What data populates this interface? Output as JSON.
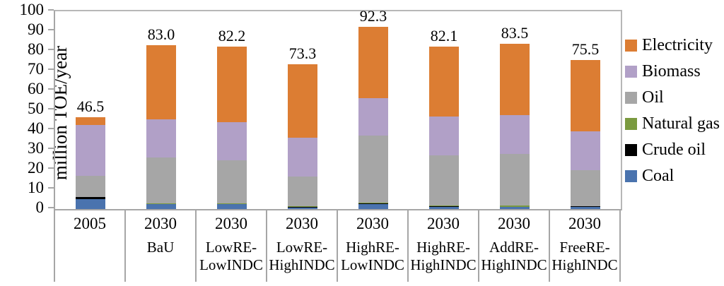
{
  "chart_data": {
    "type": "bar",
    "stacked": true,
    "ylabel": "million TOE/year",
    "ylim": [
      0,
      100
    ],
    "ytick_step": 10,
    "grid": false,
    "legend_position": "right",
    "categories": [
      {
        "year": "2005",
        "scenario": ""
      },
      {
        "year": "2030",
        "scenario": "BaU"
      },
      {
        "year": "2030",
        "scenario": "LowRE-\nLowINDC"
      },
      {
        "year": "2030",
        "scenario": "LowRE-\nHighINDC"
      },
      {
        "year": "2030",
        "scenario": "HighRE-\nLowINDC"
      },
      {
        "year": "2030",
        "scenario": "HighRE-\nHighINDC"
      },
      {
        "year": "2030",
        "scenario": "AddRE-\nHighINDC"
      },
      {
        "year": "2030",
        "scenario": "FreeRE-\nHighINDC"
      }
    ],
    "totals": [
      "46.5",
      "83.0",
      "82.2",
      "73.3",
      "92.3",
      "82.1",
      "83.5",
      "75.5"
    ],
    "series": [
      {
        "name": "Coal",
        "color": "#4A73AE",
        "values": [
          5.0,
          2.4,
          2.4,
          0.8,
          2.5,
          1.0,
          1.0,
          1.0
        ]
      },
      {
        "name": "Crude oil",
        "color": "#000000",
        "values": [
          1.2,
          0.1,
          0.1,
          0.1,
          0.3,
          0.3,
          0.2,
          0.3
        ]
      },
      {
        "name": "Natural gas",
        "color": "#7A9A3F",
        "values": [
          0.0,
          0.5,
          0.5,
          0.5,
          0.5,
          0.6,
          0.7,
          0.3
        ]
      },
      {
        "name": "Oil",
        "color": "#A6A6A6",
        "values": [
          10.5,
          23.2,
          21.6,
          15.2,
          33.8,
          25.1,
          26.1,
          17.9
        ]
      },
      {
        "name": "Biomass",
        "color": "#B1A0C7",
        "values": [
          25.8,
          19.2,
          19.5,
          19.4,
          19.1,
          19.8,
          19.5,
          19.9
        ]
      },
      {
        "name": "Electricity",
        "color": "#DC7D33",
        "values": [
          4.0,
          37.6,
          38.1,
          37.3,
          36.1,
          35.3,
          36.0,
          36.1
        ]
      }
    ],
    "legend": [
      "Electricity",
      "Biomass",
      "Oil",
      "Natural gas",
      "Crude oil",
      "Coal"
    ]
  }
}
